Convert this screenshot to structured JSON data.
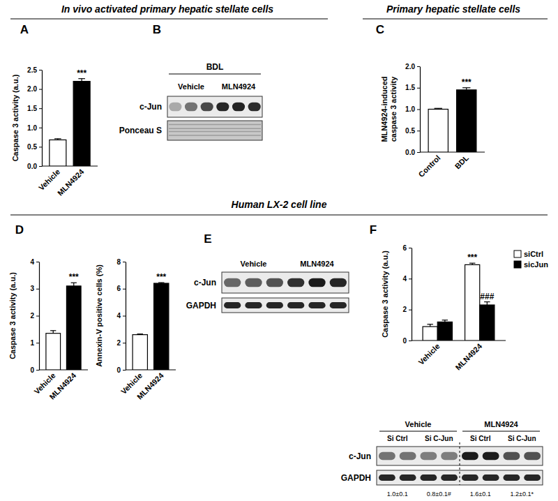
{
  "headers": [
    {
      "text": "In vivo activated primary hepatic stellate cells"
    },
    {
      "text": "Primary hepatic stellate cells"
    },
    {
      "text": "Human LX-2 cell line"
    }
  ],
  "chart_data": [
    {
      "type": "bar",
      "panel": "A",
      "ylabel": [
        "Caspase 3 activity (a.u.)"
      ],
      "categories": [
        "Vehicle",
        "MLN4924"
      ],
      "values": [
        0.68,
        2.2
      ],
      "errors": [
        0.03,
        0.07
      ],
      "colors": [
        "#ffffff",
        "#000000"
      ],
      "significance": [
        null,
        "***"
      ],
      "ylim": [
        0,
        2.5
      ],
      "yticks": [
        {
          "value": 0,
          "label": "0.0"
        },
        {
          "value": 0.5,
          "label": "0.5"
        },
        {
          "value": 1,
          "label": "1.0"
        },
        {
          "value": 1.5,
          "label": "1.5"
        },
        {
          "value": 2,
          "label": "2.0"
        },
        {
          "value": 2.5,
          "label": "2.5"
        }
      ]
    },
    {
      "type": "bar",
      "panel": "C",
      "ylabel": [
        "MLN4924-induced",
        "caspase 3 activity"
      ],
      "categories": [
        "Control",
        "BDL"
      ],
      "values": [
        1.0,
        1.45
      ],
      "errors": [
        0.02,
        0.05
      ],
      "colors": [
        "#ffffff",
        "#000000"
      ],
      "significance": [
        null,
        "***"
      ],
      "ylim": [
        0,
        2
      ],
      "yticks": [
        {
          "value": 0,
          "label": "0.0"
        },
        {
          "value": 0.5,
          "label": "0.5"
        },
        {
          "value": 1,
          "label": "1.0"
        },
        {
          "value": 1.5,
          "label": "1.5"
        },
        {
          "value": 2,
          "label": "2.0"
        }
      ]
    },
    {
      "type": "bar",
      "panel": "D",
      "ylabel": [
        "Caspase 3 activity (a.u.)"
      ],
      "categories": [
        "Vehicle",
        "MLN4924"
      ],
      "values": [
        1.35,
        3.1
      ],
      "errors": [
        0.1,
        0.12
      ],
      "colors": [
        "#ffffff",
        "#000000"
      ],
      "significance": [
        null,
        "***"
      ],
      "ylim": [
        0,
        4
      ],
      "yticks": [
        0,
        1,
        2,
        3,
        4
      ]
    },
    {
      "type": "bar",
      "ylabel": [
        "Annexin-V positive cells (%)"
      ],
      "categories": [
        "Vehicle",
        "MLN4924"
      ],
      "values": [
        2.6,
        6.4
      ],
      "errors": [
        0.05,
        0.05
      ],
      "colors": [
        "#ffffff",
        "#000000"
      ],
      "significance": [
        null,
        "***"
      ],
      "ylim": [
        0,
        8
      ],
      "yticks": [
        0,
        2,
        4,
        6,
        8
      ]
    },
    {
      "type": "bar",
      "panel": "F",
      "ylabel": [
        "Caspase 3 activity (a.u.)"
      ],
      "categories": [
        "Vehicle",
        "MLN4924"
      ],
      "series": [
        {
          "name": "siCtrl",
          "color": "#ffffff",
          "values": [
            0.9,
            4.9
          ],
          "errors": [
            0.15,
            0.1
          ],
          "significance": [
            null,
            "***"
          ]
        },
        {
          "name": "sicJun",
          "color": "#000000",
          "values": [
            1.2,
            2.3
          ],
          "errors": [
            0.12,
            0.2
          ],
          "significance": [
            null,
            "###"
          ]
        }
      ],
      "legend": "top-right",
      "ylim": [
        0,
        6
      ],
      "yticks": [
        0,
        2,
        4,
        6
      ]
    }
  ],
  "blots": [
    {
      "panel": "B",
      "group_label": "BDL",
      "lane_groups": [
        "Vehicle",
        "MLN4924"
      ],
      "rows": [
        "c-Jun",
        "Ponceau S"
      ]
    },
    {
      "panel": "E",
      "lane_groups": [
        "Vehicle",
        "MLN4924"
      ],
      "rows": [
        "c-Jun",
        "GAPDH"
      ]
    },
    {
      "lane_groups": [
        "Vehicle",
        "MLN4924"
      ],
      "sub_groups": [
        "Si Ctrl",
        "Si C-Jun",
        "Si Ctrl",
        "Si C-Jun"
      ],
      "rows": [
        "c-Jun",
        "GAPDH"
      ],
      "quantification": [
        "1.0±0.1",
        "0.8±0.1#",
        "1.6±0.1",
        "1.2±0.1*"
      ]
    }
  ]
}
